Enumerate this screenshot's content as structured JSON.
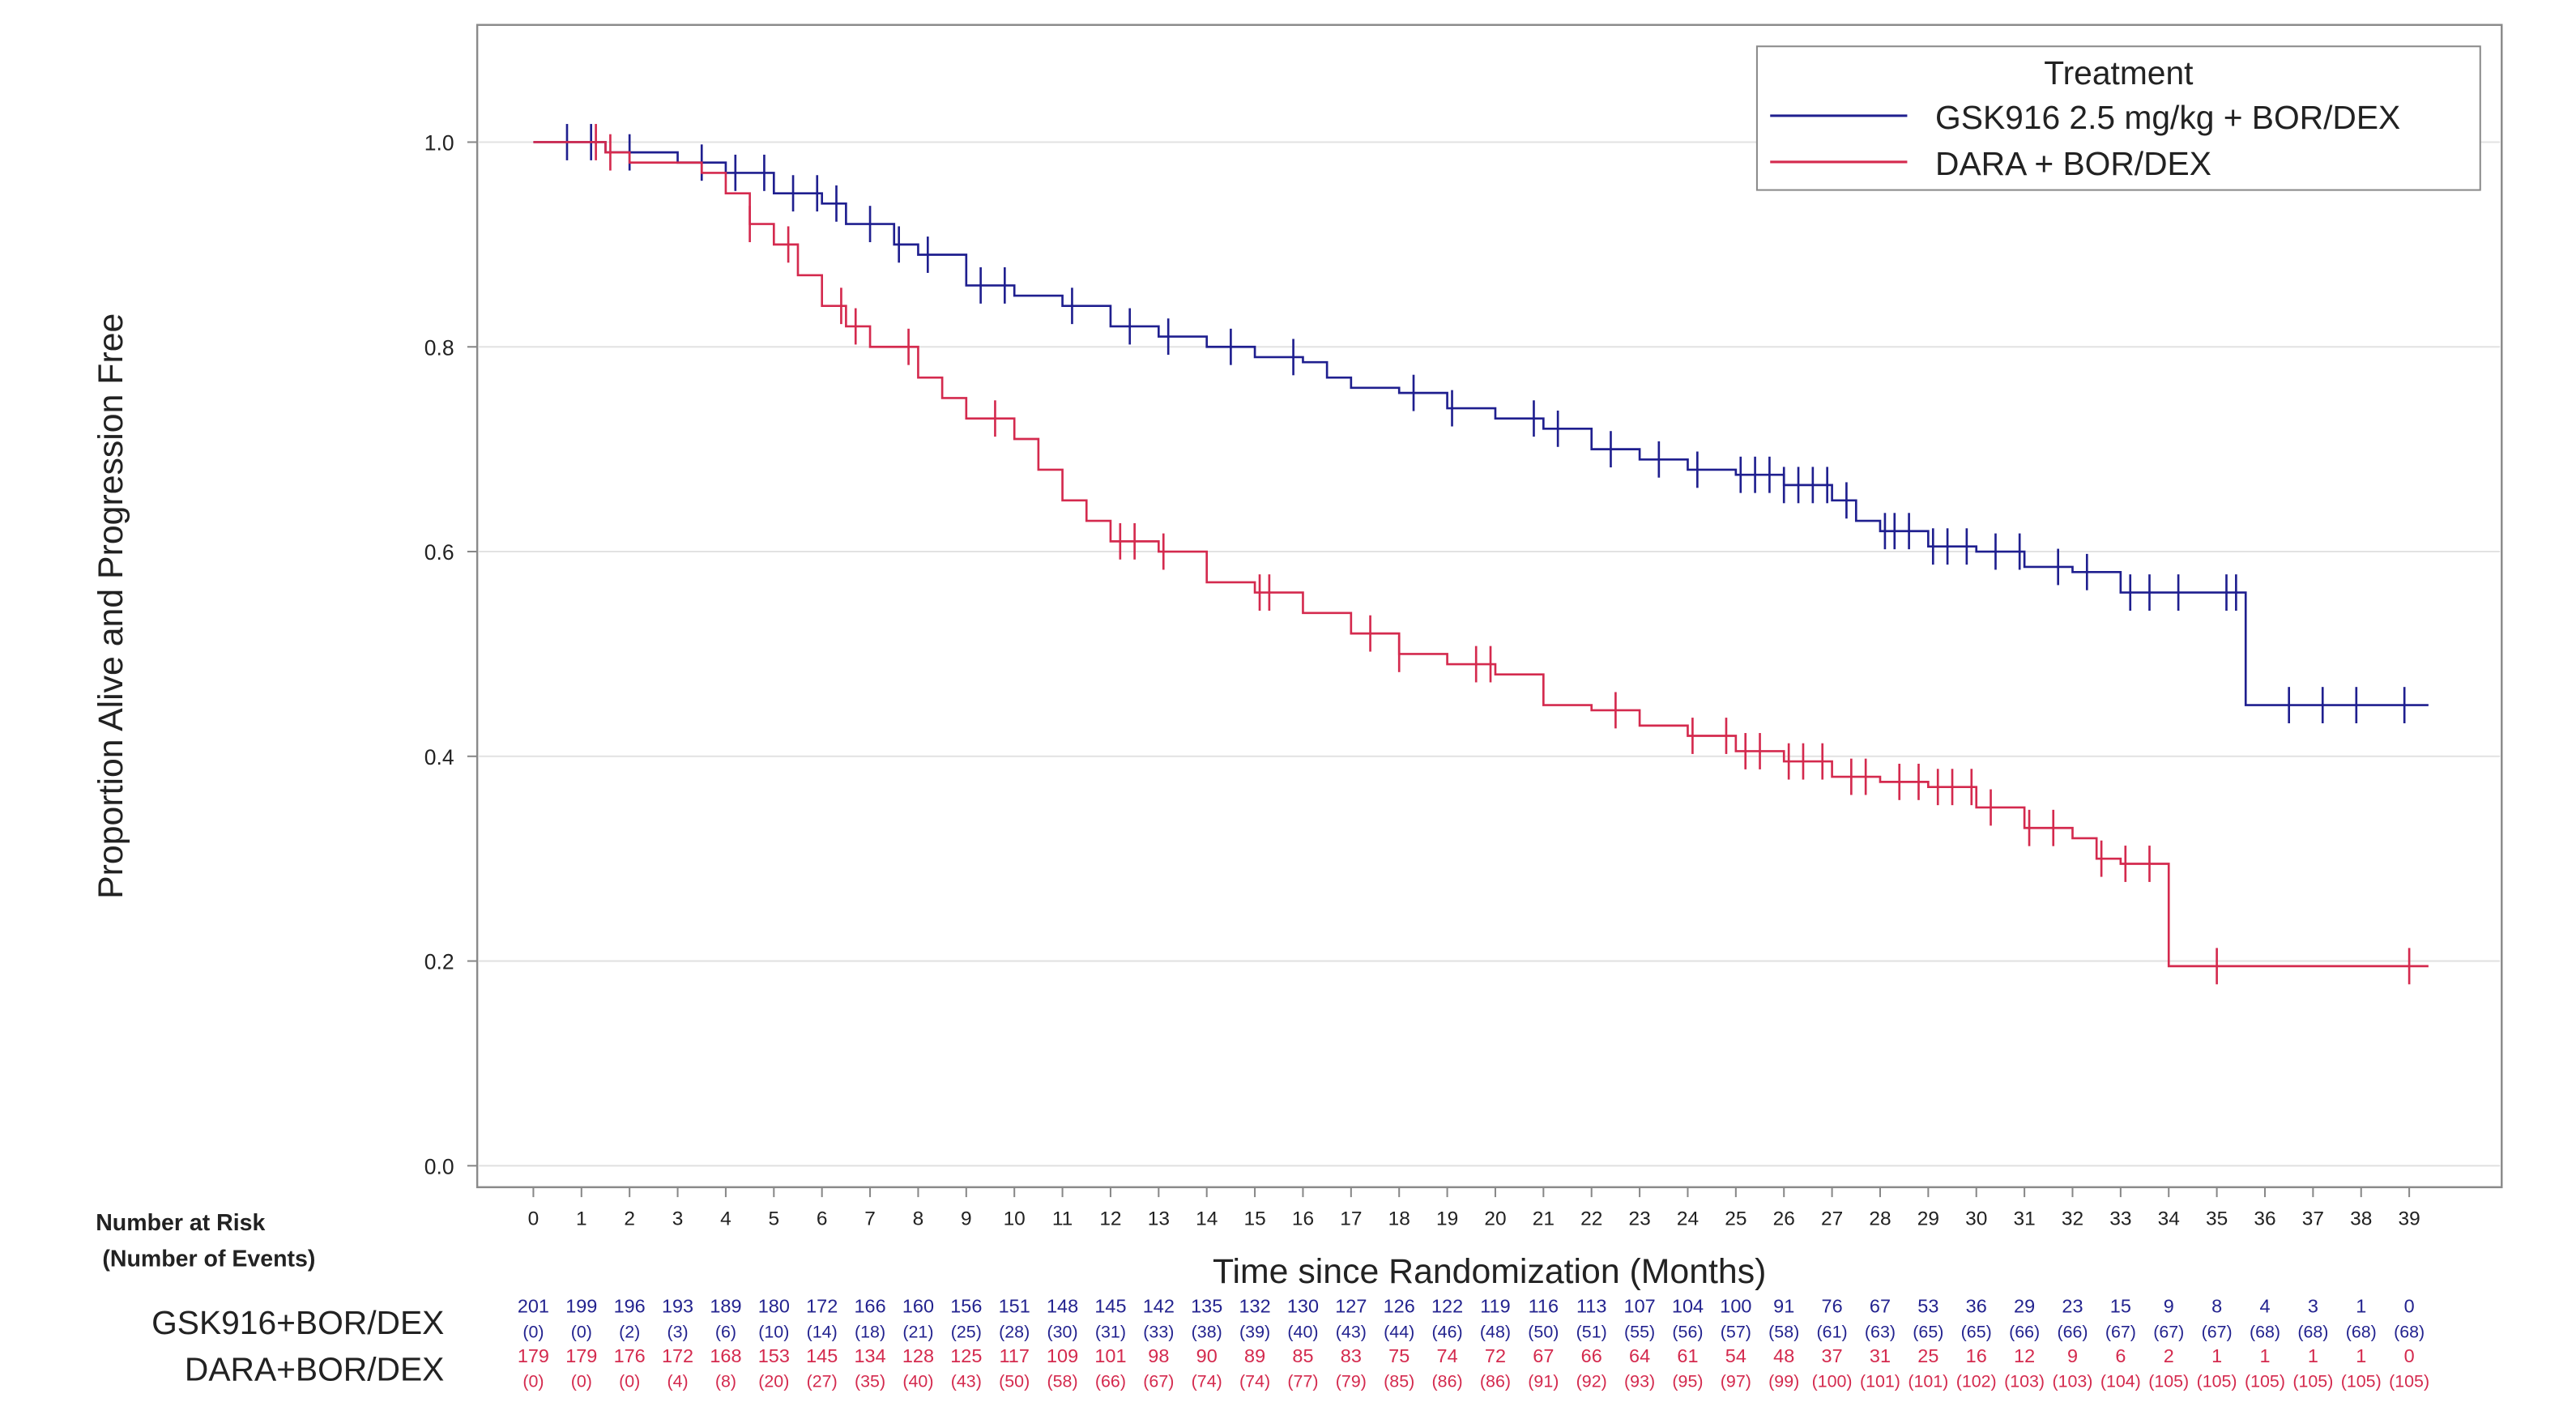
{
  "chart_data": {
    "type": "line",
    "subtype": "kaplan-meier step",
    "xlabel": "Time since Randomization (Months)",
    "ylabel": "Proportion Alive and Progression Free",
    "xlim": [
      0,
      39
    ],
    "ylim": [
      0,
      1.0
    ],
    "xticks": [
      0,
      1,
      2,
      3,
      4,
      5,
      6,
      7,
      8,
      9,
      10,
      11,
      12,
      13,
      14,
      15,
      16,
      17,
      18,
      19,
      20,
      21,
      22,
      23,
      24,
      25,
      26,
      27,
      28,
      29,
      30,
      31,
      32,
      33,
      34,
      35,
      36,
      37,
      38,
      39
    ],
    "yticks": [
      "0.0",
      "0.2",
      "0.4",
      "0.6",
      "0.8",
      "1.0"
    ],
    "grid": "horizontal",
    "legend": {
      "title": "Treatment",
      "placement": "top-right"
    },
    "series": [
      {
        "name": "GSK916 2.5 mg/kg + BOR/DEX",
        "color": "#1f1f8f",
        "steps": [
          [
            0,
            1.0
          ],
          [
            1.5,
            0.99
          ],
          [
            3,
            0.98
          ],
          [
            4,
            0.97
          ],
          [
            5,
            0.95
          ],
          [
            6,
            0.94
          ],
          [
            6.5,
            0.92
          ],
          [
            7.5,
            0.9
          ],
          [
            8,
            0.89
          ],
          [
            9,
            0.86
          ],
          [
            10,
            0.85
          ],
          [
            11,
            0.84
          ],
          [
            12,
            0.82
          ],
          [
            13,
            0.81
          ],
          [
            14,
            0.8
          ],
          [
            15,
            0.79
          ],
          [
            16,
            0.785
          ],
          [
            16.5,
            0.77
          ],
          [
            17,
            0.76
          ],
          [
            18,
            0.755
          ],
          [
            19,
            0.74
          ],
          [
            20,
            0.73
          ],
          [
            21,
            0.72
          ],
          [
            22,
            0.7
          ],
          [
            23,
            0.69
          ],
          [
            24,
            0.68
          ],
          [
            25,
            0.675
          ],
          [
            26,
            0.665
          ],
          [
            27,
            0.65
          ],
          [
            27.5,
            0.63
          ],
          [
            28,
            0.62
          ],
          [
            29,
            0.605
          ],
          [
            30,
            0.6
          ],
          [
            31,
            0.585
          ],
          [
            32,
            0.58
          ],
          [
            33,
            0.56
          ],
          [
            35.6,
            0.45
          ],
          [
            39.4,
            0.45
          ]
        ],
        "censored": [
          0.7,
          1.2,
          2,
          3.5,
          4.2,
          4.8,
          5.4,
          5.9,
          6.3,
          7,
          7.6,
          8.2,
          9.3,
          9.8,
          11.2,
          12.4,
          13.2,
          14.5,
          15.8,
          18.3,
          19.1,
          20.8,
          21.3,
          22.4,
          23.4,
          24.2,
          25.1,
          25.4,
          25.7,
          26,
          26.3,
          26.6,
          26.9,
          27.3,
          28.1,
          28.3,
          28.6,
          29.1,
          29.4,
          29.8,
          30.4,
          30.9,
          31.7,
          32.3,
          33.2,
          33.6,
          34.2,
          35.2,
          35.4,
          36.5,
          37.2,
          37.9,
          38.9
        ]
      },
      {
        "name": "DARA + BOR/DEX",
        "color": "#d42a4e",
        "steps": [
          [
            0,
            1.0
          ],
          [
            1.5,
            0.99
          ],
          [
            2,
            0.98
          ],
          [
            3.5,
            0.97
          ],
          [
            4,
            0.95
          ],
          [
            4.5,
            0.92
          ],
          [
            5,
            0.9
          ],
          [
            5.5,
            0.87
          ],
          [
            6,
            0.84
          ],
          [
            6.5,
            0.82
          ],
          [
            7,
            0.8
          ],
          [
            8,
            0.77
          ],
          [
            8.5,
            0.75
          ],
          [
            9,
            0.73
          ],
          [
            10,
            0.71
          ],
          [
            10.5,
            0.68
          ],
          [
            11,
            0.65
          ],
          [
            11.5,
            0.63
          ],
          [
            12,
            0.61
          ],
          [
            13,
            0.6
          ],
          [
            14,
            0.57
          ],
          [
            15,
            0.56
          ],
          [
            16,
            0.54
          ],
          [
            17,
            0.52
          ],
          [
            18,
            0.5
          ],
          [
            19,
            0.49
          ],
          [
            20,
            0.48
          ],
          [
            21,
            0.45
          ],
          [
            22,
            0.445
          ],
          [
            23,
            0.43
          ],
          [
            24,
            0.42
          ],
          [
            25,
            0.405
          ],
          [
            26,
            0.395
          ],
          [
            27,
            0.38
          ],
          [
            28,
            0.375
          ],
          [
            29,
            0.37
          ],
          [
            30,
            0.35
          ],
          [
            31,
            0.33
          ],
          [
            32,
            0.32
          ],
          [
            32.5,
            0.3
          ],
          [
            33,
            0.295
          ],
          [
            34,
            0.195
          ],
          [
            39.4,
            0.195
          ]
        ],
        "censored": [
          1.3,
          1.6,
          4.5,
          5.3,
          6.4,
          6.7,
          7.8,
          9.6,
          12.2,
          12.5,
          13.1,
          15.1,
          15.3,
          17.4,
          18,
          19.6,
          19.9,
          22.5,
          24.1,
          24.8,
          25.2,
          25.5,
          26.1,
          26.4,
          26.8,
          27.4,
          27.7,
          28.4,
          28.8,
          29.2,
          29.5,
          29.9,
          30.3,
          31.1,
          31.6,
          32.6,
          33.1,
          33.6,
          35,
          39
        ]
      }
    ],
    "risk_table": {
      "title": "Number at Risk",
      "subtitle": "(Number of Events)",
      "rows": [
        {
          "label": "GSK916+BOR/DEX",
          "at_risk": [
            "201",
            "199",
            "196",
            "193",
            "189",
            "180",
            "172",
            "166",
            "160",
            "156",
            "151",
            "148",
            "145",
            "142",
            "135",
            "132",
            "130",
            "127",
            "126",
            "122",
            "119",
            "116",
            "113",
            "107",
            "104",
            "100",
            "91",
            "76",
            "67",
            "53",
            "36",
            "29",
            "23",
            "15",
            "9",
            "8",
            "4",
            "3",
            "1",
            "0"
          ],
          "events": [
            "(0)",
            "(0)",
            "(2)",
            "(3)",
            "(6)",
            "(10)",
            "(14)",
            "(18)",
            "(21)",
            "(25)",
            "(28)",
            "(30)",
            "(31)",
            "(33)",
            "(38)",
            "(39)",
            "(40)",
            "(43)",
            "(44)",
            "(46)",
            "(48)",
            "(50)",
            "(51)",
            "(55)",
            "(56)",
            "(57)",
            "(58)",
            "(61)",
            "(63)",
            "(65)",
            "(65)",
            "(66)",
            "(66)",
            "(67)",
            "(67)",
            "(67)",
            "(68)",
            "(68)",
            "(68)",
            "(68)"
          ]
        },
        {
          "label": "DARA+BOR/DEX",
          "at_risk": [
            "179",
            "179",
            "176",
            "172",
            "168",
            "153",
            "145",
            "134",
            "128",
            "125",
            "117",
            "109",
            "101",
            "98",
            "90",
            "89",
            "85",
            "83",
            "75",
            "74",
            "72",
            "67",
            "66",
            "64",
            "61",
            "54",
            "48",
            "37",
            "31",
            "25",
            "16",
            "12",
            "9",
            "6",
            "2",
            "1",
            "1",
            "1",
            "1",
            "0"
          ],
          "events": [
            "(0)",
            "(0)",
            "(0)",
            "(4)",
            "(8)",
            "(20)",
            "(27)",
            "(35)",
            "(40)",
            "(43)",
            "(50)",
            "(58)",
            "(66)",
            "(67)",
            "(74)",
            "(74)",
            "(77)",
            "(79)",
            "(85)",
            "(86)",
            "(86)",
            "(91)",
            "(92)",
            "(93)",
            "(95)",
            "(97)",
            "(99)",
            "(100)",
            "(101)",
            "(101)",
            "(102)",
            "(103)",
            "(103)",
            "(104)",
            "(105)",
            "(105)",
            "(105)",
            "(105)",
            "(105)",
            "(105)"
          ]
        }
      ]
    }
  }
}
